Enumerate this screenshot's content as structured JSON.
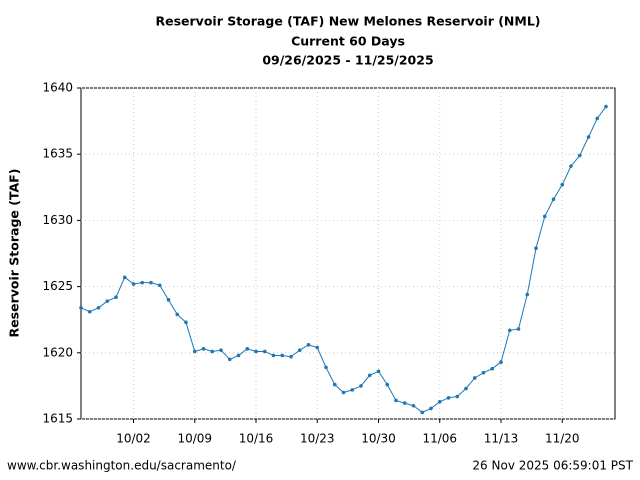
{
  "chart_data": {
    "type": "line",
    "title_lines": [
      "Reservoir Storage (TAF) New Melones Reservoir (NML)",
      "Current 60 Days",
      "09/26/2025 - 11/25/2025"
    ],
    "y_label": "Reservoir Storage (TAF)",
    "categories": [
      null,
      null,
      null,
      null,
      null,
      null,
      "10/02",
      null,
      null,
      null,
      null,
      null,
      null,
      "10/09",
      null,
      null,
      null,
      null,
      null,
      null,
      "10/16",
      null,
      null,
      null,
      null,
      null,
      null,
      "10/23",
      null,
      null,
      null,
      null,
      null,
      null,
      "10/30",
      null,
      null,
      null,
      null,
      null,
      null,
      "11/06",
      null,
      null,
      null,
      null,
      null,
      null,
      "11/13",
      null,
      null,
      null,
      null,
      null,
      null,
      "11/20",
      null,
      null,
      null,
      null,
      null
    ],
    "series": [
      {
        "color": "#1f77b4",
        "values": [
          1623.4,
          1623.1,
          1623.4,
          1623.9,
          1624.2,
          1625.7,
          1625.2,
          1625.3,
          1625.3,
          1625.1,
          1624.0,
          1622.9,
          1622.3,
          1620.1,
          1620.3,
          1620.1,
          1620.2,
          1619.5,
          1619.8,
          1620.3,
          1620.1,
          1620.1,
          1619.8,
          1619.8,
          1619.7,
          1620.2,
          1620.6,
          1620.4,
          1618.9,
          1617.6,
          1617.0,
          1617.2,
          1617.5,
          1618.3,
          1618.6,
          1617.6,
          1616.4,
          1616.2,
          1616.0,
          1615.5,
          1615.8,
          1616.3,
          1616.6,
          1616.7,
          1617.3,
          1618.1,
          1618.5,
          1618.8,
          1619.3,
          1621.7,
          1621.8,
          1624.4,
          1627.9,
          1630.3,
          1631.6,
          1632.7,
          1634.1,
          1634.9,
          1636.3,
          1637.7,
          1638.6
        ]
      }
    ],
    "ylim": [
      1615,
      1640
    ],
    "yticks": [
      1615,
      1620,
      1625,
      1630,
      1635,
      1640
    ],
    "grid": true
  },
  "footer": {
    "source": "www.cbr.washington.edu/sacramento/",
    "timestamp": "26 Nov 2025 06:59:01 PST"
  }
}
